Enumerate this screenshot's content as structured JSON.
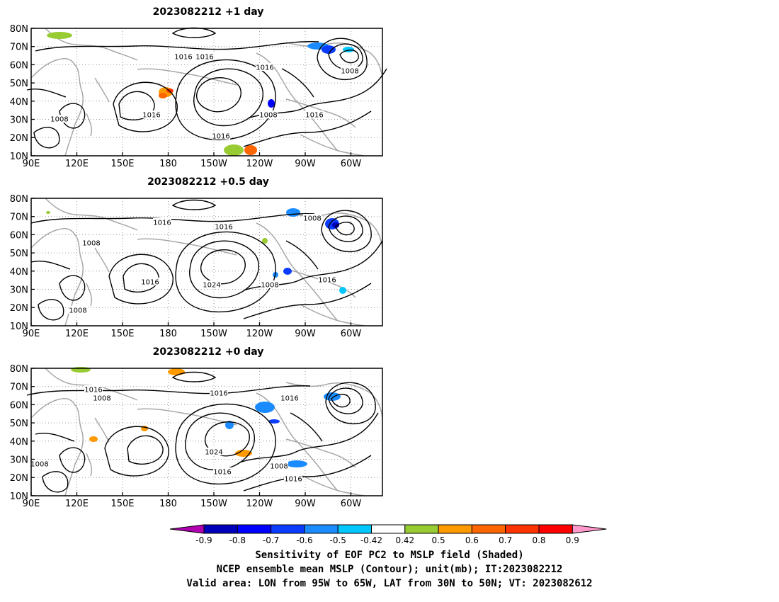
{
  "panels": [
    {
      "title": "2023082212  +1 day"
    },
    {
      "title": "2023082212  +0.5 day"
    },
    {
      "title": "2023082212  +0 day"
    }
  ],
  "axes": {
    "lat_ticks": [
      "80N",
      "70N",
      "60N",
      "50N",
      "40N",
      "30N",
      "20N",
      "10N"
    ],
    "lon_ticks": [
      "90E",
      "120E",
      "150E",
      "180",
      "150W",
      "120W",
      "90W",
      "60W"
    ]
  },
  "contour_labels": [
    [
      "1016",
      "1016",
      "1016",
      "1008",
      "1016",
      "1008",
      "1016",
      "1016",
      "1008"
    ],
    [
      "1016",
      "1016",
      "1008",
      "1008",
      "1016",
      "1024",
      "1008",
      "1016",
      "1008"
    ],
    [
      "1016",
      "1008",
      "1016",
      "1016",
      "1008",
      "1024",
      "1016",
      "1008",
      "1016"
    ]
  ],
  "colorbar": {
    "boundaries": [
      "-0.9",
      "-0.8",
      "-0.7",
      "-0.6",
      "-0.5",
      "-0.42",
      "0.42",
      "0.5",
      "0.6",
      "0.7",
      "0.8",
      "0.9"
    ],
    "colors": [
      "#b000b0",
      "#0000bb",
      "#0000ff",
      "#0a3cff",
      "#1a8cff",
      "#00c8ff",
      "#ffffff",
      "#99cc33",
      "#ff9900",
      "#ff6600",
      "#ff3300",
      "#ff0000",
      "#ff99cc"
    ]
  },
  "captions": [
    "Sensitivity of EOF PC2 to MSLP field (Shaded)",
    "NCEP ensemble mean MSLP (Contour); unit(mb); IT:2023082212",
    "Valid area: LON from 95W to 65W, LAT from 30N to 50N; VT: 2023082612"
  ]
}
